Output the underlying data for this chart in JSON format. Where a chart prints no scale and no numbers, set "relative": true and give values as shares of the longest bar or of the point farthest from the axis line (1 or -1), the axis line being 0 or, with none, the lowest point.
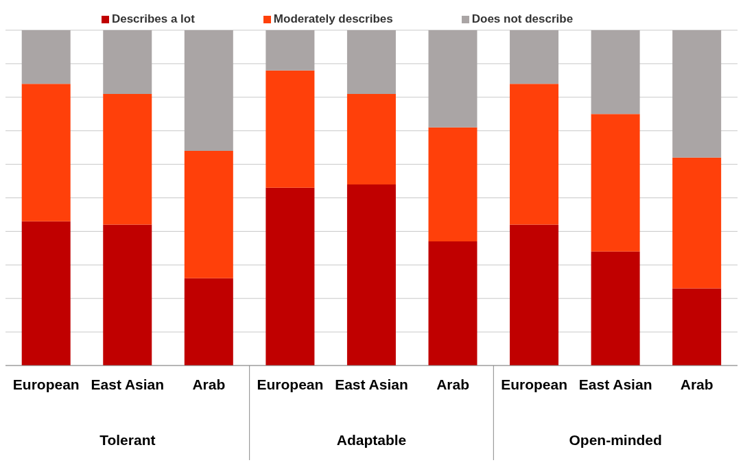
{
  "chart_data": {
    "type": "bar",
    "stacked": true,
    "relative": true,
    "grid": "y",
    "legend": "top",
    "categories": [
      "European",
      "East Asian",
      "Arab",
      "European",
      "East Asian",
      "Arab",
      "European",
      "East Asian",
      "Arab"
    ],
    "annotations": [
      "Tolerant",
      "Adaptable",
      "Open-minded"
    ],
    "series": [
      {
        "name": "Describes a lot",
        "color": "#c00000",
        "values": [
          0.43,
          0.42,
          0.26,
          0.53,
          0.54,
          0.37,
          0.42,
          0.34,
          0.23
        ]
      },
      {
        "name": "Moderately describes",
        "color": "#ff400a",
        "values": [
          0.41,
          0.39,
          0.38,
          0.35,
          0.27,
          0.34,
          0.42,
          0.41,
          0.39
        ]
      },
      {
        "name": "Does not describe",
        "color": "#aaa5a5",
        "values": [
          0.16,
          0.19,
          0.36,
          0.12,
          0.19,
          0.29,
          0.16,
          0.25,
          0.38
        ]
      }
    ]
  }
}
